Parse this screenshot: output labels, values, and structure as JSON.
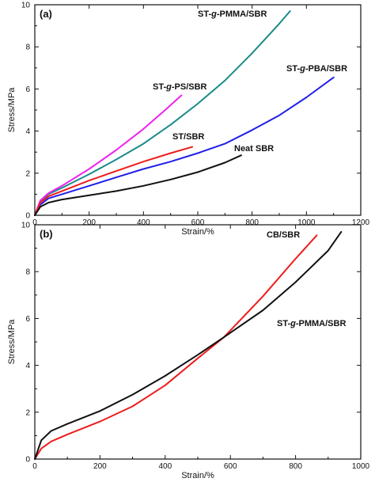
{
  "colors": {
    "ST-g-PMMA/SBR": "#1a8a8a",
    "ST-g-PBA/SBR": "#1f1fe8",
    "ST-g-PS/SBR": "#ee22ee",
    "ST/SBR": "#ee1c1c",
    "Neat SBR": "#111111",
    "CB/SBR": "#ee1c1c",
    "axis": "#111111"
  },
  "chart_data": [
    {
      "type": "line",
      "panel_label": "(a)",
      "xlabel": "Strain/%",
      "ylabel": "Stress/MPa",
      "xlim": [
        0,
        1200
      ],
      "ylim": [
        0,
        10
      ],
      "xticks": [
        0,
        200,
        400,
        600,
        800,
        1000,
        1200
      ],
      "yticks": [
        0,
        2,
        4,
        6,
        8,
        10
      ],
      "grid": false,
      "series": [
        {
          "name": "ST-g-PMMA/SBR",
          "label_text": "ST-g-PMMA/SBR",
          "color": "#1a8a8a",
          "x": [
            0,
            20,
            50,
            100,
            200,
            300,
            400,
            500,
            600,
            700,
            800,
            900,
            940
          ],
          "y": [
            0,
            0.65,
            1.0,
            1.3,
            1.95,
            2.65,
            3.4,
            4.3,
            5.3,
            6.4,
            7.7,
            9.1,
            9.7
          ]
        },
        {
          "name": "ST-g-PBA/SBR",
          "label_text": "ST-g-PBA/SBR",
          "color": "#1f1fe8",
          "x": [
            0,
            20,
            50,
            100,
            200,
            300,
            400,
            500,
            600,
            700,
            800,
            900,
            1000,
            1100
          ],
          "y": [
            0,
            0.5,
            0.8,
            1.0,
            1.4,
            1.8,
            2.2,
            2.55,
            2.95,
            3.4,
            4.05,
            4.75,
            5.6,
            6.55
          ]
        },
        {
          "name": "ST-g-PS/SBR",
          "label_text": "ST-g-PS/SBR",
          "color": "#ee22ee",
          "x": [
            0,
            20,
            50,
            100,
            200,
            300,
            400,
            480,
            540
          ],
          "y": [
            0,
            0.7,
            1.05,
            1.4,
            2.2,
            3.1,
            4.1,
            5.0,
            5.7
          ]
        },
        {
          "name": "ST/SBR",
          "label_text": "ST/SBR",
          "color": "#ee1c1c",
          "x": [
            0,
            20,
            50,
            100,
            200,
            300,
            400,
            500,
            580
          ],
          "y": [
            0,
            0.6,
            0.9,
            1.15,
            1.65,
            2.1,
            2.55,
            2.95,
            3.25
          ]
        },
        {
          "name": "Neat SBR",
          "label_text": "Neat SBR",
          "color": "#111111",
          "x": [
            0,
            20,
            50,
            100,
            200,
            300,
            400,
            500,
            600,
            700,
            760
          ],
          "y": [
            0,
            0.4,
            0.6,
            0.75,
            0.95,
            1.15,
            1.4,
            1.7,
            2.05,
            2.5,
            2.85
          ]
        }
      ]
    },
    {
      "type": "line",
      "panel_label": "(b)",
      "xlabel": "Strain/%",
      "ylabel": "Stress/MPa",
      "xlim": [
        0,
        1000
      ],
      "ylim": [
        0,
        10
      ],
      "xticks": [
        0,
        200,
        400,
        600,
        800,
        1000
      ],
      "yticks": [
        0,
        2,
        4,
        6,
        8,
        10
      ],
      "grid": false,
      "series": [
        {
          "name": "CB/SBR",
          "label_text": "CB/SBR",
          "color": "#ee1c1c",
          "x": [
            0,
            20,
            50,
            100,
            200,
            300,
            400,
            500,
            580,
            700,
            800,
            865
          ],
          "y": [
            0,
            0.45,
            0.75,
            1.05,
            1.6,
            2.25,
            3.15,
            4.3,
            5.2,
            6.95,
            8.55,
            9.55
          ]
        },
        {
          "name": "ST-g-PMMA/SBR",
          "label_text": "ST-g-PMMA/SBR",
          "color": "#111111",
          "x": [
            0,
            20,
            50,
            100,
            200,
            300,
            400,
            500,
            580,
            700,
            800,
            900,
            940
          ],
          "y": [
            0,
            0.8,
            1.2,
            1.5,
            2.05,
            2.75,
            3.55,
            4.45,
            5.2,
            6.35,
            7.55,
            8.9,
            9.7
          ]
        }
      ]
    }
  ]
}
